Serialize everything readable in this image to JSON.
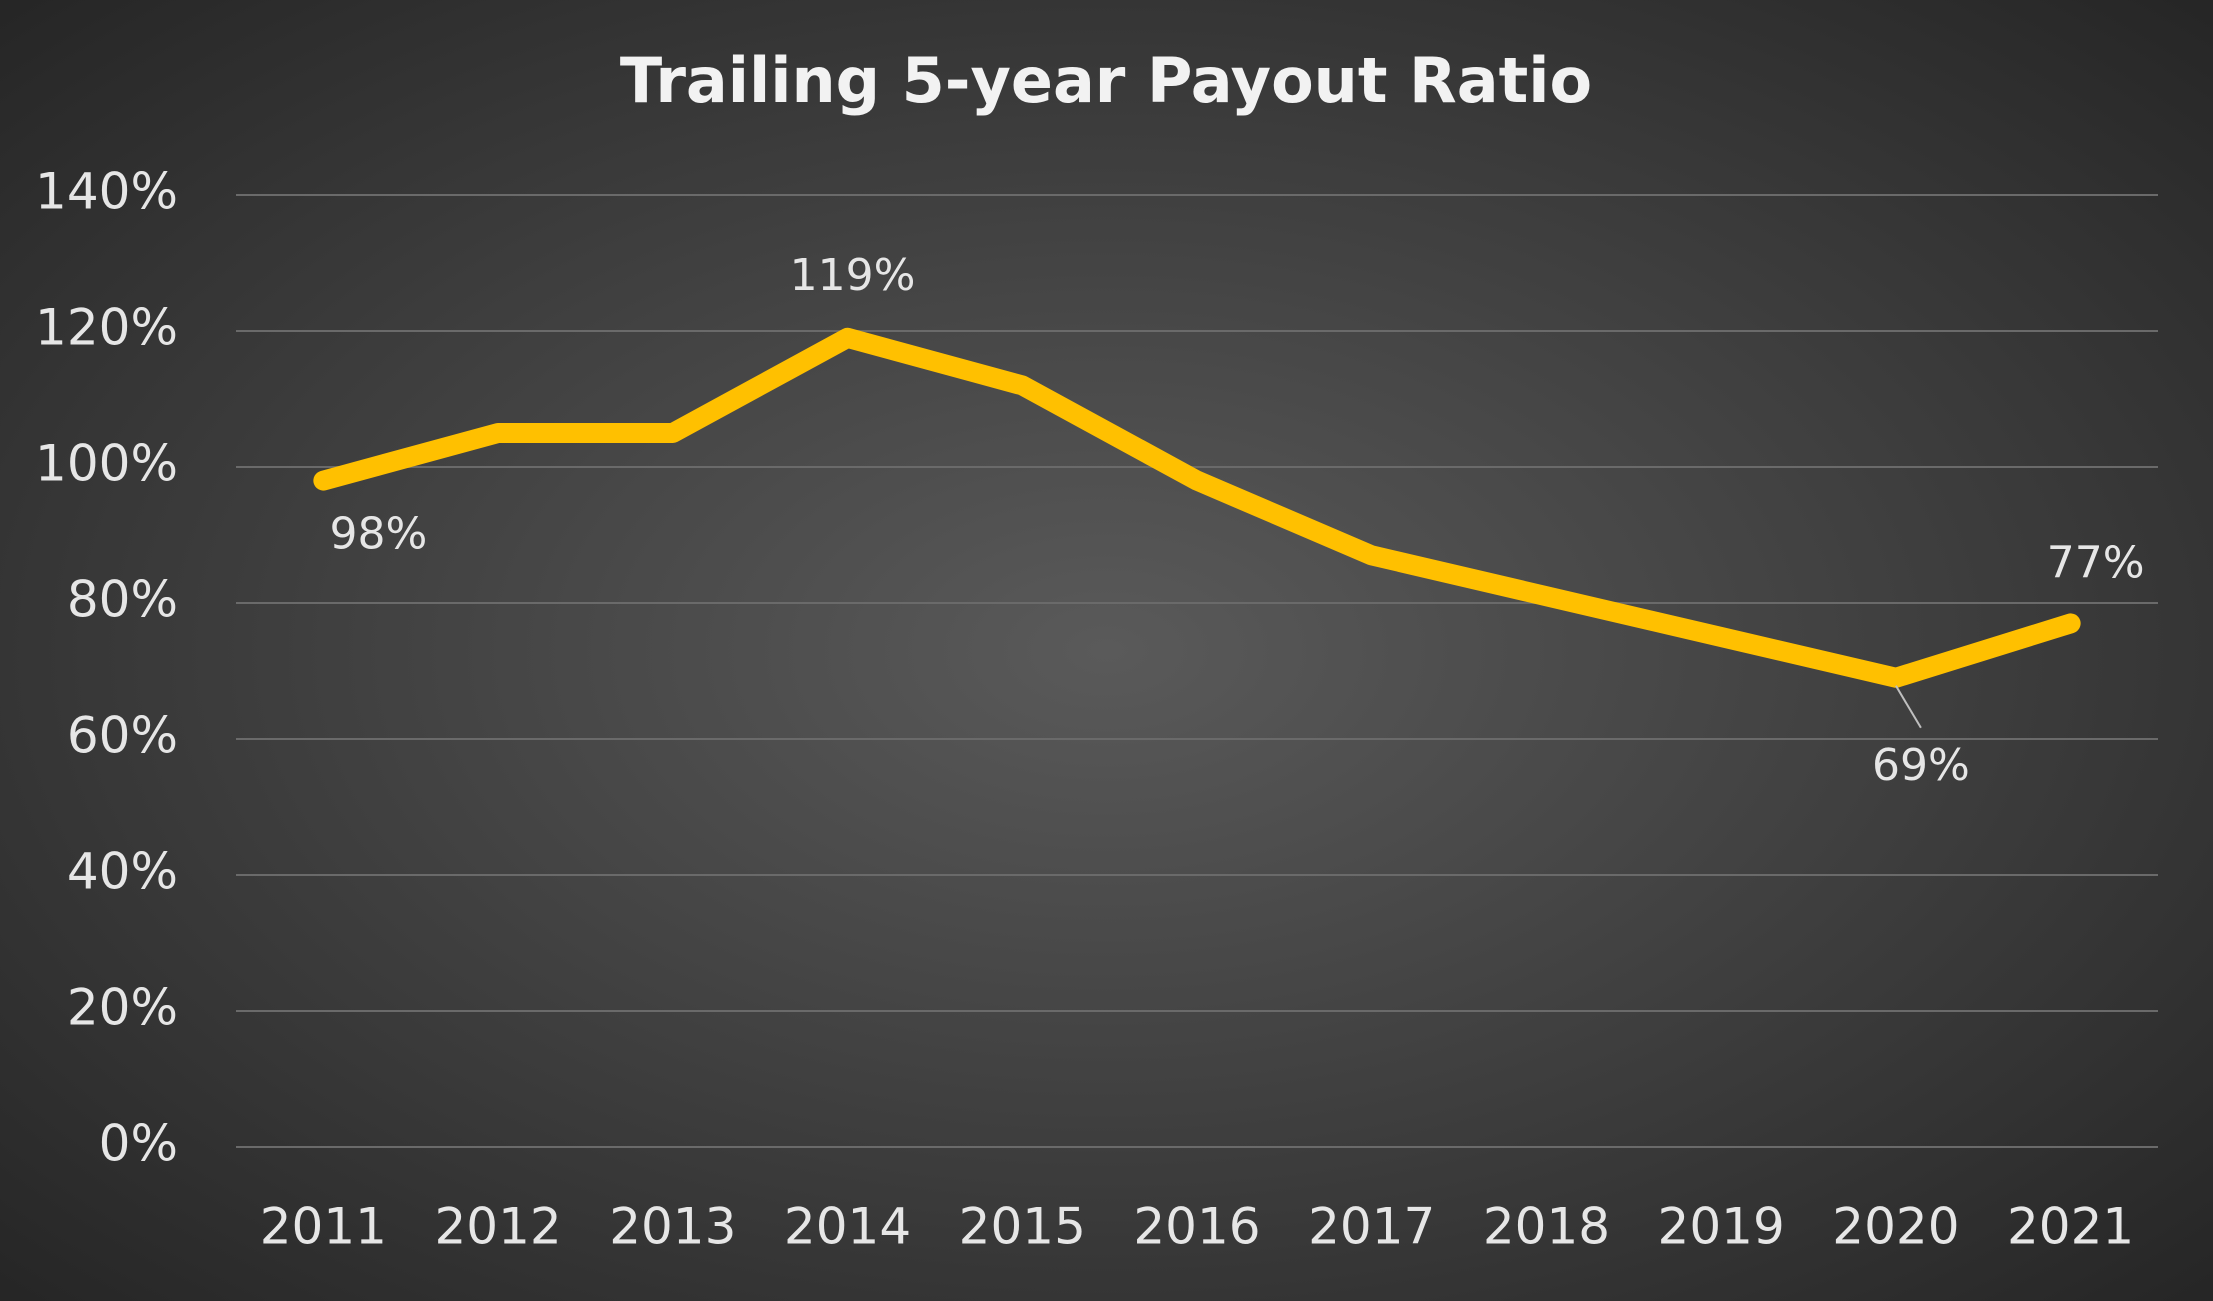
{
  "chart_data": {
    "type": "line",
    "title": "Trailing 5-year Payout Ratio",
    "categories": [
      "2011",
      "2012",
      "2013",
      "2014",
      "2015",
      "2016",
      "2017",
      "2018",
      "2019",
      "2020",
      "2021"
    ],
    "series": [
      {
        "name": "Trailing 5-year Payout Ratio",
        "color": "#ffc000",
        "values": [
          98,
          105,
          105,
          119,
          112,
          98,
          87,
          81,
          75,
          69,
          77
        ],
        "value_labels": [
          "98%",
          null,
          null,
          "119%",
          null,
          null,
          null,
          null,
          null,
          "69%",
          "77%"
        ]
      }
    ],
    "ylim": [
      0,
      140
    ],
    "yticks": [
      {
        "value": 0,
        "label": "0%"
      },
      {
        "value": 20,
        "label": "20%"
      },
      {
        "value": 40,
        "label": "40%"
      },
      {
        "value": 60,
        "label": "60%"
      },
      {
        "value": 80,
        "label": "80%"
      },
      {
        "value": 100,
        "label": "100%"
      },
      {
        "value": 120,
        "label": "120%"
      },
      {
        "value": 140,
        "label": "140%"
      }
    ],
    "grid": true
  }
}
